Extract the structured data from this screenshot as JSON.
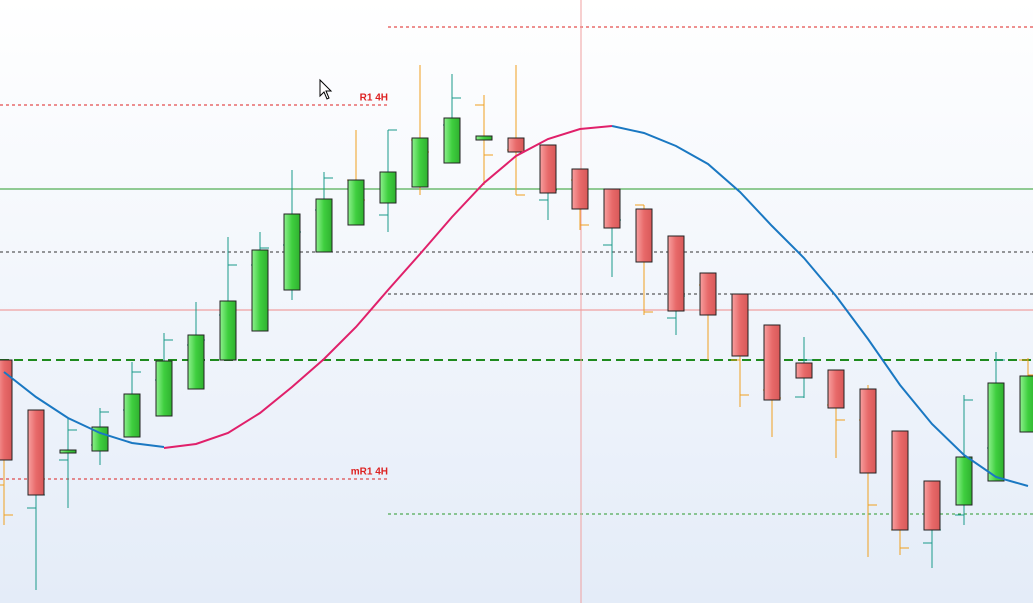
{
  "chart_data": {
    "type": "candlestick",
    "ylim": [
      0,
      603
    ],
    "up_color": "#3fcf3f",
    "down_color": "#e86a6a",
    "candles": {
      "open": [
        243,
        193,
        150,
        152,
        166,
        187,
        214,
        243,
        272,
        313,
        351,
        378,
        400,
        416,
        440,
        463,
        465,
        458,
        434,
        414,
        394,
        367,
        330,
        309,
        278,
        240,
        233,
        214,
        172,
        122,
        98,
        122,
        171
      ],
      "close": [
        143,
        108,
        153,
        176,
        209,
        242,
        268,
        302,
        353,
        389,
        404,
        423,
        431,
        465,
        485,
        467,
        451,
        410,
        394,
        375,
        341,
        292,
        288,
        247,
        203,
        225,
        195,
        130,
        73,
        73,
        146,
        220,
        227
      ]
    },
    "ohlc": {
      "up_color": "#1a9a8a",
      "down_color": "#f0a020",
      "open": [
        118,
        95,
        143,
        158,
        193,
        223,
        258,
        288,
        338,
        358,
        393,
        423,
        388,
        463,
        478,
        498,
        453,
        403,
        423,
        358,
        398,
        285,
        318,
        243,
        213,
        206,
        198,
        183,
        73,
        60,
        88,
        155,
        243
      ],
      "high": [
        143,
        123,
        185,
        195,
        241,
        270,
        301,
        366,
        371,
        433,
        431,
        473,
        473,
        538,
        529,
        508,
        538,
        458,
        433,
        398,
        398,
        318,
        323,
        248,
        218,
        266,
        231,
        218,
        123,
        98,
        208,
        251,
        245
      ],
      "low": [
        78,
        13,
        95,
        138,
        175,
        208,
        243,
        243,
        273,
        303,
        351,
        378,
        371,
        408,
        468,
        418,
        408,
        383,
        373,
        326,
        288,
        268,
        243,
        196,
        166,
        205,
        145,
        46,
        48,
        35,
        78,
        123,
        223
      ],
      "close": [
        88,
        108,
        173,
        191,
        231,
        263,
        263,
        338,
        355,
        371,
        425,
        403,
        473,
        451,
        505,
        448,
        408,
        413,
        378,
        383,
        291,
        307,
        293,
        208,
        205,
        243,
        183,
        98,
        55,
        73,
        203,
        243,
        228
      ]
    },
    "series": [
      {
        "color": "#e0206a",
        "values": [
          null,
          null,
          null,
          null,
          null,
          155,
          159,
          170,
          190,
          216,
          244,
          276,
          313,
          349,
          386,
          420,
          447,
          464,
          474,
          477,
          null,
          null,
          null,
          null,
          null,
          null,
          null,
          null,
          null,
          null,
          null,
          null,
          null
        ]
      },
      {
        "color": "#1a78c2",
        "values": [
          231,
          206,
          185,
          170,
          160,
          156,
          null,
          null,
          null,
          null,
          null,
          null,
          null,
          null,
          null,
          null,
          null,
          null,
          null,
          477,
          470,
          457,
          439,
          411,
          377,
          345,
          307,
          264,
          218,
          179,
          148,
          126,
          117
        ]
      }
    ],
    "levels": [
      {
        "value": 576,
        "color": "#dd2222",
        "style": "dashed",
        "span": "right"
      },
      {
        "value": 498,
        "color": "#dd2222",
        "style": "dashed",
        "span": "left",
        "label": "R1 4H"
      },
      {
        "value": 414,
        "color": "#2a9a2a",
        "style": "solid",
        "span": "full"
      },
      {
        "value": 351,
        "color": "#333333",
        "style": "dashed",
        "span": "full"
      },
      {
        "value": 309,
        "color": "#333333",
        "style": "dashed",
        "span": "right"
      },
      {
        "value": 293,
        "color": "#f08a8a",
        "style": "solid",
        "span": "full"
      },
      {
        "value": 243,
        "color": "#1e8a1e",
        "style": "thick-dashed",
        "span": "full"
      },
      {
        "value": 124,
        "color": "#dd2222",
        "style": "dashed",
        "span": "left",
        "label": "mR1 4H"
      },
      {
        "value": 89,
        "color": "#2a9a2a",
        "style": "dashed",
        "span": "right"
      }
    ]
  }
}
